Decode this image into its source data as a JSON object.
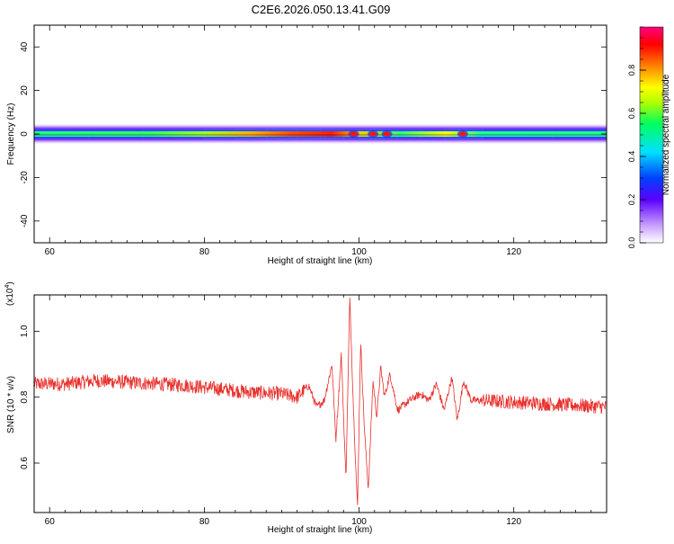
{
  "figure": {
    "title": "C2E6.2026.050.13.41.G09"
  },
  "colors": {
    "axis": "#000000",
    "signal": "#e8302c",
    "background": "#ffffff"
  },
  "chart_data": [
    {
      "type": "heatmap",
      "xlabel": "Height of straight line (km)",
      "ylabel": "Frequency (Hz)",
      "xlim": [
        58,
        132
      ],
      "ylim": [
        -50,
        50
      ],
      "x_ticks": [
        60,
        80,
        100,
        120
      ],
      "x_tick_labels": [
        "60",
        "80",
        "100",
        "120"
      ],
      "y_ticks": [
        40,
        20,
        0,
        -20,
        -40
      ],
      "y_tick_labels": [
        "40",
        "20",
        "0",
        "-20",
        "-40"
      ],
      "band_profile": [
        {
          "x": 58,
          "amp": 0.55
        },
        {
          "x": 65,
          "amp": 0.5
        },
        {
          "x": 72,
          "amp": 0.55
        },
        {
          "x": 76,
          "amp": 0.6
        },
        {
          "x": 80,
          "amp": 0.7
        },
        {
          "x": 84,
          "amp": 0.85
        },
        {
          "x": 88,
          "amp": 0.95
        },
        {
          "x": 92,
          "amp": 0.95
        },
        {
          "x": 95,
          "amp": 0.9
        },
        {
          "x": 98,
          "amp": 0.8
        },
        {
          "x": 100,
          "amp": 0.7
        },
        {
          "x": 101.5,
          "amp": 0.95
        },
        {
          "x": 103,
          "amp": 0.9
        },
        {
          "x": 105,
          "amp": 0.6
        },
        {
          "x": 108,
          "amp": 0.65
        },
        {
          "x": 111,
          "amp": 0.6
        },
        {
          "x": 113,
          "amp": 0.95
        },
        {
          "x": 116,
          "amp": 0.55
        },
        {
          "x": 125,
          "amp": 0.55
        },
        {
          "x": 132,
          "amp": 0.55
        }
      ],
      "hotspots": [
        {
          "x": 99.3,
          "amp": 1.0
        },
        {
          "x": 101.8,
          "amp": 1.0
        },
        {
          "x": 103.6,
          "amp": 0.95
        },
        {
          "x": 113.4,
          "amp": 0.95
        }
      ]
    },
    {
      "type": "line",
      "xlabel": "Height of straight line (km)",
      "ylabel": "SNR (10 * v/v)",
      "y_scale_note": "(x10",
      "y_scale_exp": "4",
      "y_scale_close": ")",
      "xlim": [
        58,
        132
      ],
      "ylim": [
        0.45,
        1.11
      ],
      "x_ticks": [
        60,
        80,
        100,
        120
      ],
      "x_tick_labels": [
        "60",
        "80",
        "100",
        "120"
      ],
      "y_ticks": [
        0.6,
        0.8,
        1.0
      ],
      "y_tick_labels": [
        "0.6",
        "0.8",
        "1.0"
      ],
      "series": [
        {
          "x": [
            58,
            62,
            66,
            70,
            74,
            78,
            82,
            86,
            90,
            92,
            93.5,
            94.5,
            95.5,
            96.5,
            97,
            97.7,
            98.3,
            98.8,
            99.3,
            99.8,
            100.2,
            100.7,
            101.2,
            101.8,
            102.3,
            102.8,
            103.3,
            104,
            105,
            106.5,
            108,
            109,
            110,
            111,
            112,
            112.7,
            113.5,
            114.5,
            116,
            120,
            124,
            128,
            132
          ],
          "y": [
            0.84,
            0.84,
            0.85,
            0.845,
            0.84,
            0.835,
            0.825,
            0.815,
            0.81,
            0.8,
            0.835,
            0.77,
            0.79,
            0.9,
            0.67,
            0.93,
            0.55,
            1.1,
            0.75,
            0.46,
            0.97,
            0.7,
            0.52,
            0.85,
            0.74,
            0.89,
            0.8,
            0.87,
            0.76,
            0.79,
            0.81,
            0.79,
            0.84,
            0.76,
            0.86,
            0.73,
            0.85,
            0.79,
            0.79,
            0.785,
            0.78,
            0.775,
            0.77
          ]
        }
      ]
    }
  ],
  "colorbar": {
    "label": "Normalized spectral amplitude",
    "range": [
      0,
      1
    ],
    "ticks": [
      0.0,
      0.2,
      0.4,
      0.6,
      0.8
    ],
    "tick_labels": [
      "0.0",
      "0.2",
      "0.4",
      "0.6",
      "0.8"
    ]
  }
}
